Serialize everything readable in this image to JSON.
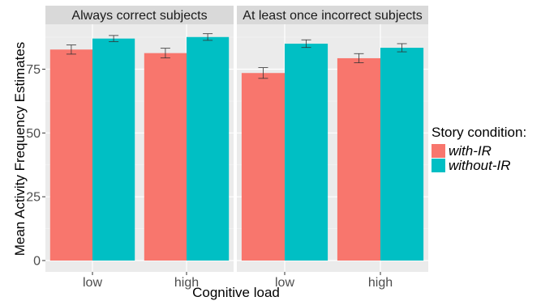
{
  "chart_data": {
    "type": "bar",
    "xlabel": "Cognitive load",
    "ylabel": "Mean Activity Frequency Estimates",
    "ylim": [
      0,
      90
    ],
    "yticks": [
      0,
      25,
      50,
      75
    ],
    "grid": true,
    "legend": {
      "title": "Story condition:",
      "placement": "right",
      "entries": [
        {
          "label": "with-IR",
          "color": "#F8766D"
        },
        {
          "label": "without-IR",
          "color": "#00BFC4"
        }
      ]
    },
    "categories": [
      "low",
      "high"
    ],
    "panels": [
      {
        "title": "Always correct subjects",
        "series": [
          {
            "name": "with-IR",
            "values": [
              82.7,
              81.3
            ],
            "errors": [
              1.8,
              1.9
            ]
          },
          {
            "name": "without-IR",
            "values": [
              87.0,
              87.6
            ],
            "errors": [
              1.2,
              1.3
            ]
          }
        ]
      },
      {
        "title": "At least once incorrect subjects",
        "series": [
          {
            "name": "with-IR",
            "values": [
              73.5,
              79.3
            ],
            "errors": [
              2.1,
              1.8
            ]
          },
          {
            "name": "without-IR",
            "values": [
              85.0,
              83.4
            ],
            "errors": [
              1.5,
              1.6
            ]
          }
        ]
      }
    ]
  }
}
